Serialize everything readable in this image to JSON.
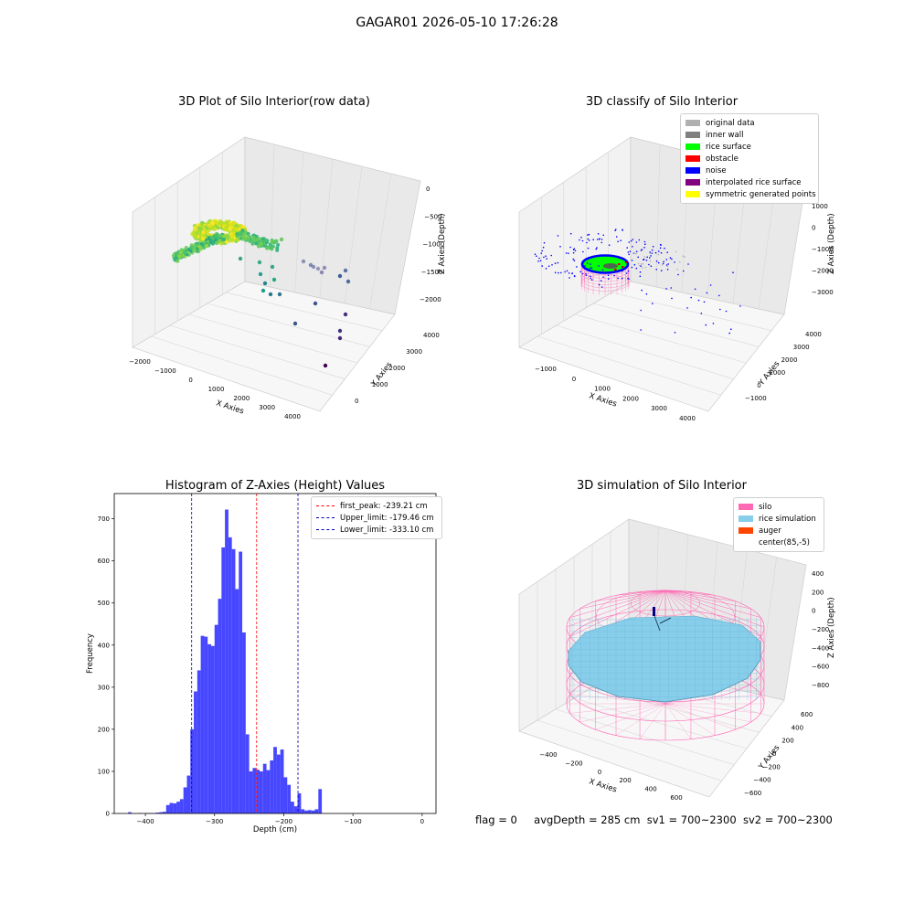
{
  "suptitle": "GAGAR01 2026-05-10 17:26:28",
  "chart_data": [
    {
      "type": "scatter",
      "title": "3D Plot of Silo Interior(row data)",
      "xlabel": "X Axies",
      "ylabel": "Y Axies",
      "zlabel": "Z Axies (Depth)",
      "x_ticks": [
        "−2000",
        "−1000",
        "0",
        "1000",
        "2000",
        "3000",
        "4000"
      ],
      "y_ticks": [
        "0",
        "1000",
        "2000",
        "3000",
        "4000"
      ],
      "z_ticks": [
        "0",
        "−500",
        "−1000",
        "−1500",
        "−2000"
      ],
      "xlim": [
        -2000,
        4000
      ],
      "ylim": [
        -500,
        4500
      ],
      "zlim": [
        -2200,
        100
      ],
      "colormap": "viridis"
    },
    {
      "type": "scatter",
      "title": "3D classify of Silo Interior",
      "xlabel": "X Axies",
      "ylabel": "Y Axies",
      "zlabel": "Z Axies (Depth)",
      "x_ticks": [
        "−1000",
        "0",
        "1000",
        "2000",
        "3000",
        "4000"
      ],
      "y_ticks": [
        "−1000",
        "0",
        "1000",
        "2000",
        "3000",
        "4000"
      ],
      "z_ticks": [
        "1000",
        "0",
        "−1000",
        "−2000",
        "−3000"
      ],
      "legend_position": "top-right",
      "legend": [
        {
          "name": "original data",
          "color": "#b0b0b0"
        },
        {
          "name": "inner wall",
          "color": "#808080"
        },
        {
          "name": "rice surface",
          "color": "#00ff00"
        },
        {
          "name": "obstacle",
          "color": "#ff0000"
        },
        {
          "name": "noise",
          "color": "#0000ff"
        },
        {
          "name": "interpolated rice surface",
          "color": "#800080"
        },
        {
          "name": "symmetric generated points",
          "color": "#ffff00"
        }
      ],
      "legend_partial": "2000"
    },
    {
      "type": "bar",
      "title": "Histogram of Z-Axies (Height) Values",
      "xlabel": "Depth (cm)",
      "ylabel": "Frequency",
      "xlim": [
        -445,
        20
      ],
      "ylim": [
        0,
        760
      ],
      "x_ticks": [
        -400,
        -300,
        -200,
        -100,
        0
      ],
      "y_ticks": [
        0,
        100,
        200,
        300,
        400,
        500,
        600,
        700
      ],
      "bar_color": "#3333ff",
      "bins": [
        [
          -425,
          -420,
          3
        ],
        [
          -420,
          -415,
          0
        ],
        [
          -415,
          -410,
          0
        ],
        [
          -410,
          -405,
          1
        ],
        [
          -405,
          -400,
          0
        ],
        [
          -400,
          -395,
          1
        ],
        [
          -395,
          -390,
          1
        ],
        [
          -390,
          -385,
          1
        ],
        [
          -385,
          -380,
          2
        ],
        [
          -380,
          -375,
          3
        ],
        [
          -375,
          -370,
          4
        ],
        [
          -370,
          -365,
          20
        ],
        [
          -365,
          -360,
          25
        ],
        [
          -360,
          -355,
          24
        ],
        [
          -355,
          -350,
          28
        ],
        [
          -350,
          -345,
          34
        ],
        [
          -345,
          -340,
          62
        ],
        [
          -340,
          -335,
          90
        ],
        [
          -335,
          -330,
          200
        ],
        [
          -330,
          -325,
          290
        ],
        [
          -325,
          -320,
          340
        ],
        [
          -320,
          -315,
          422
        ],
        [
          -315,
          -310,
          420
        ],
        [
          -310,
          -305,
          402
        ],
        [
          -305,
          -300,
          398
        ],
        [
          -300,
          -295,
          448
        ],
        [
          -295,
          -290,
          510
        ],
        [
          -290,
          -285,
          632
        ],
        [
          -285,
          -280,
          722
        ],
        [
          -280,
          -275,
          656
        ],
        [
          -275,
          -270,
          628
        ],
        [
          -270,
          -265,
          533
        ],
        [
          -265,
          -260,
          622
        ],
        [
          -260,
          -255,
          430
        ],
        [
          -255,
          -250,
          188
        ],
        [
          -250,
          -245,
          100
        ],
        [
          -245,
          -240,
          108
        ],
        [
          -240,
          -235,
          104
        ],
        [
          -235,
          -230,
          100
        ],
        [
          -230,
          -225,
          118
        ],
        [
          -225,
          -220,
          103
        ],
        [
          -220,
          -215,
          126
        ],
        [
          -215,
          -210,
          158
        ],
        [
          -210,
          -205,
          140
        ],
        [
          -205,
          -200,
          152
        ],
        [
          -200,
          -195,
          86
        ],
        [
          -195,
          -190,
          68
        ],
        [
          -190,
          -185,
          28
        ],
        [
          -185,
          -180,
          17
        ],
        [
          -180,
          -175,
          48
        ],
        [
          -175,
          -170,
          10
        ],
        [
          -170,
          -165,
          7
        ],
        [
          -165,
          -160,
          8
        ],
        [
          -160,
          -155,
          7
        ],
        [
          -155,
          -150,
          10
        ],
        [
          -150,
          -145,
          58
        ]
      ],
      "bins_note": "",
      "lines": [
        {
          "label": "first_peak: -239.21 cm",
          "x": -239.21,
          "color": "#ff0000"
        },
        {
          "label": "Upper_limit: -179.46 cm",
          "x": -179.46,
          "color": "#0000aa"
        },
        {
          "label": "Lower_limit: -333.10 cm",
          "x": -333.1,
          "color": "#0000aa"
        }
      ],
      "legend_position": "top-right"
    },
    {
      "type": "scatter",
      "title": "3D simulation of Silo Interior",
      "xlabel": "X Axies",
      "ylabel": "Y Axies",
      "zlabel": "Z Axies (Depth)",
      "x_ticks": [
        "−400",
        "−200",
        "0",
        "200",
        "400",
        "600"
      ],
      "y_ticks": [
        "−600",
        "−400",
        "−200",
        "0",
        "200",
        "400",
        "600"
      ],
      "z_ticks": [
        "400",
        "200",
        "0",
        "−200",
        "−400",
        "−600",
        "−800"
      ],
      "legend_position": "top-right",
      "legend": [
        {
          "name": "silo",
          "color": "#ff69b4"
        },
        {
          "name": "rice simulation",
          "color": "#87ceeb"
        },
        {
          "name": "auger",
          "color": "#ff4500"
        },
        {
          "name": "center(85,-5)",
          "color": "#ffffff"
        }
      ]
    }
  ],
  "status": {
    "flag": "flag = 0",
    "avg_depth": "avgDepth = 285 cm",
    "sv1": "sv1 = 700~2300",
    "sv2": "sv2 = 700~2300"
  }
}
